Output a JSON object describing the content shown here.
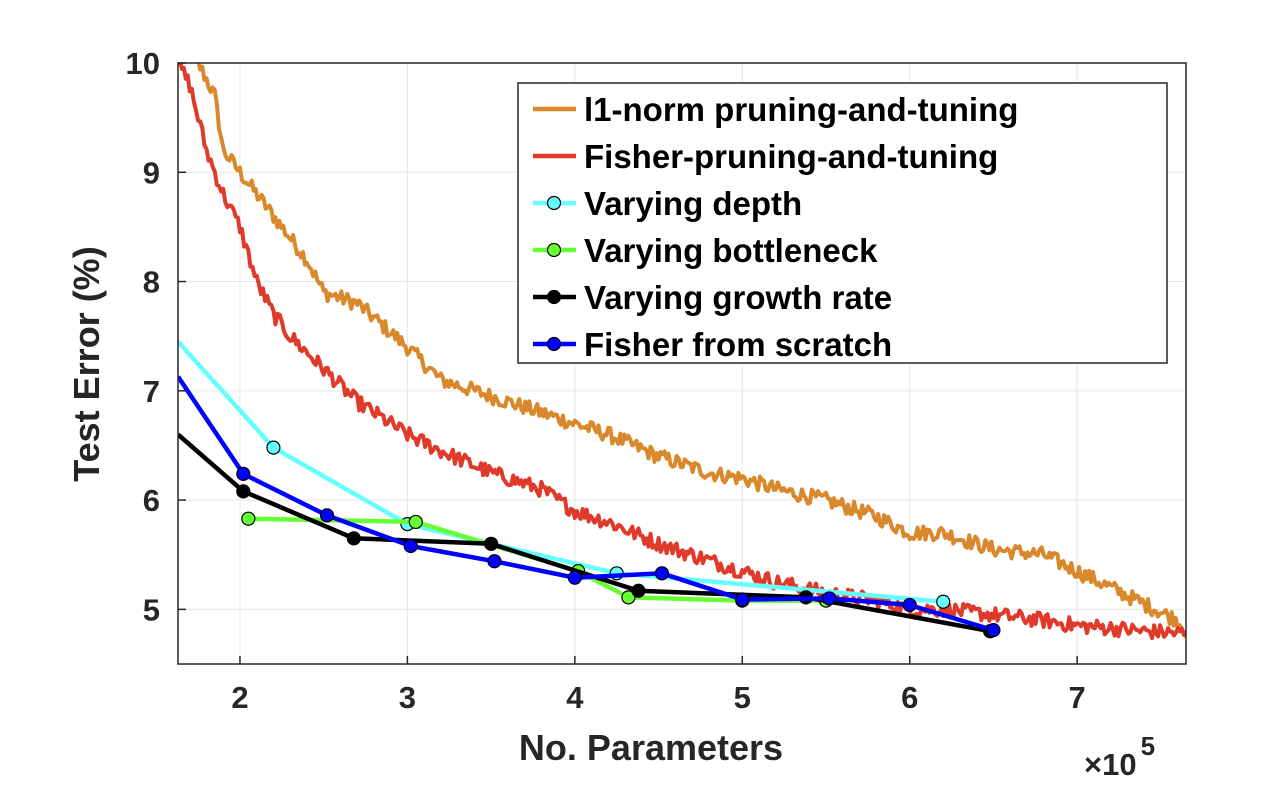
{
  "chart_data": {
    "type": "line",
    "xlabel": "No. Parameters",
    "ylabel": "Test Error (%)",
    "x_exponent_label": "×10",
    "x_exponent_power": "5",
    "x_scale_factor": 100000,
    "xlim": [
      1.63,
      7.65
    ],
    "ylim": [
      4.5,
      10
    ],
    "x_ticks": [
      2,
      3,
      4,
      5,
      6,
      7
    ],
    "y_ticks": [
      5,
      6,
      7,
      8,
      9,
      10
    ],
    "grid": true,
    "legend_position": "top-right",
    "series": [
      {
        "name": "l1-norm pruning-and-tuning",
        "color": "#d9882b",
        "markers": false,
        "noisy": true,
        "x": [
          1.63,
          1.75,
          1.85,
          1.9,
          2.0,
          2.2,
          2.4,
          2.5,
          2.7,
          3.0,
          3.2,
          3.5,
          3.8,
          4.0,
          4.2,
          4.5,
          4.8,
          5.0,
          5.2,
          5.5,
          5.8,
          6.0,
          6.2,
          6.5,
          6.8,
          7.0,
          7.2,
          7.4,
          7.6,
          7.65
        ],
        "y": [
          10.2,
          10.0,
          9.7,
          9.2,
          9.0,
          8.6,
          8.2,
          7.9,
          7.8,
          7.4,
          7.1,
          6.95,
          6.8,
          6.7,
          6.6,
          6.4,
          6.25,
          6.2,
          6.1,
          6.0,
          5.85,
          5.7,
          5.7,
          5.55,
          5.5,
          5.35,
          5.2,
          5.05,
          4.9,
          4.8
        ]
      },
      {
        "name": "Fisher-pruning-and-tuning",
        "color": "#e03a2a",
        "markers": false,
        "noisy": true,
        "x": [
          1.63,
          1.7,
          1.8,
          1.9,
          2.0,
          2.1,
          2.2,
          2.3,
          2.5,
          2.7,
          3.0,
          3.2,
          3.5,
          3.8,
          4.0,
          4.2,
          4.5,
          4.8,
          5.0,
          5.2,
          5.5,
          5.8,
          6.0,
          6.2,
          6.5,
          6.8,
          7.0,
          7.2,
          7.4,
          7.65
        ],
        "y": [
          10.0,
          9.8,
          9.2,
          8.8,
          8.5,
          8.0,
          7.7,
          7.5,
          7.2,
          6.9,
          6.6,
          6.45,
          6.25,
          6.1,
          5.9,
          5.8,
          5.6,
          5.45,
          5.35,
          5.25,
          5.15,
          5.08,
          5.0,
          5.0,
          4.95,
          4.9,
          4.85,
          4.83,
          4.8,
          4.78
        ]
      },
      {
        "name": "Varying depth",
        "color": "#66ffff",
        "markers": true,
        "noisy": false,
        "x": [
          1.63,
          2.2,
          3.0,
          4.25,
          6.2
        ],
        "y": [
          7.45,
          6.48,
          5.78,
          5.33,
          5.07
        ]
      },
      {
        "name": "Varying bottleneck",
        "color": "#66ff33",
        "markers": true,
        "noisy": false,
        "x": [
          2.05,
          3.05,
          4.02,
          4.32,
          5.0,
          5.5
        ],
        "y": [
          5.83,
          5.8,
          5.35,
          5.11,
          5.08,
          5.08
        ]
      },
      {
        "name": "Varying growth rate",
        "color": "#000000",
        "markers": true,
        "noisy": false,
        "x": [
          1.63,
          2.02,
          2.68,
          3.5,
          4.38,
          5.38,
          6.48
        ],
        "y": [
          6.6,
          6.08,
          5.65,
          5.6,
          5.17,
          5.11,
          4.8
        ]
      },
      {
        "name": "Fisher from scratch",
        "color": "#0000ff",
        "markers": true,
        "noisy": false,
        "x": [
          1.63,
          2.02,
          2.52,
          3.02,
          3.52,
          4.0,
          4.52,
          5.0,
          5.52,
          6.0,
          6.5
        ],
        "y": [
          7.13,
          6.24,
          5.86,
          5.58,
          5.44,
          5.29,
          5.33,
          5.09,
          5.1,
          5.04,
          4.81
        ]
      }
    ]
  }
}
